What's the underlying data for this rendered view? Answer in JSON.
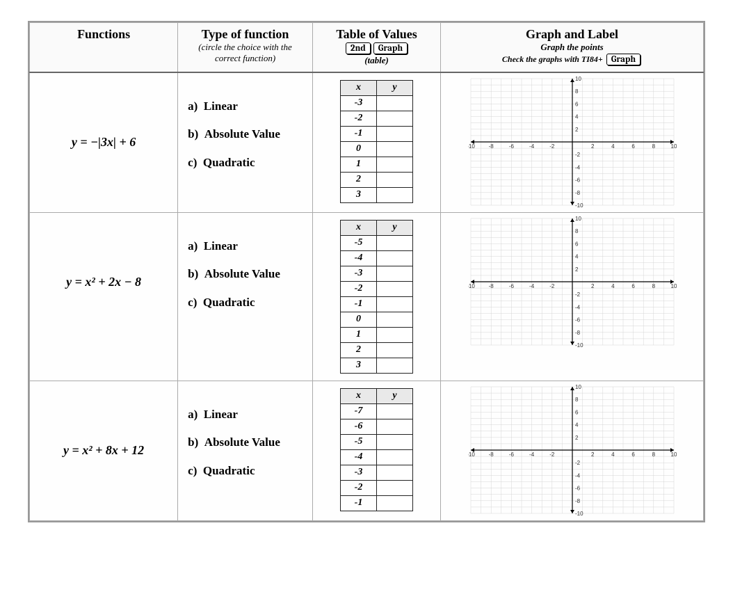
{
  "headers": {
    "functions": "Functions",
    "type_title": "Type of function",
    "type_sub1": "(circle the choice with the",
    "type_sub2": "correct function)",
    "tov_title": "Table of Values",
    "tov_badge1": "2nd",
    "tov_badge2": "Graph",
    "tov_sub": "(table)",
    "graph_title": "Graph and Label",
    "graph_sub1": "Graph the points",
    "graph_sub2": "Check the graphs with TI84+",
    "graph_badge": "Graph"
  },
  "rows": [
    {
      "fn": "y = −|3x| + 6",
      "types": {
        "a": "Linear",
        "b": "Absolute Value",
        "c": "Quadratic"
      },
      "xvals": [
        "-3",
        "-2",
        "-1",
        "0",
        "1",
        "2",
        "3"
      ]
    },
    {
      "fn": "y = x² + 2x − 8",
      "types": {
        "a": "Linear",
        "b": "Absolute Value",
        "c": "Quadratic"
      },
      "xvals": [
        "-5",
        "-4",
        "-3",
        "-2",
        "-1",
        "0",
        "1",
        "2",
        "3"
      ]
    },
    {
      "fn": "y = x² + 8x + 12",
      "types": {
        "a": "Linear",
        "b": "Absolute Value",
        "c": "Quadratic"
      },
      "xvals": [
        "-7",
        "-6",
        "-5",
        "-4",
        "-3",
        "-2",
        "-1"
      ]
    }
  ],
  "grid": {
    "xlim": [
      -10,
      10
    ],
    "ylim": [
      -10,
      10
    ],
    "xticks": [
      -10,
      -8,
      -6,
      -4,
      -2,
      2,
      4,
      6,
      8,
      10
    ],
    "yticks_pos": [
      2,
      4,
      6,
      8,
      10
    ],
    "yticks_neg": [
      -2,
      -4,
      -6,
      -8,
      -10
    ],
    "gridline_color": "#d5d5d5",
    "axis_color": "#000000",
    "background": "#ffffff"
  },
  "tov_headers": {
    "x": "x",
    "y": "y"
  }
}
